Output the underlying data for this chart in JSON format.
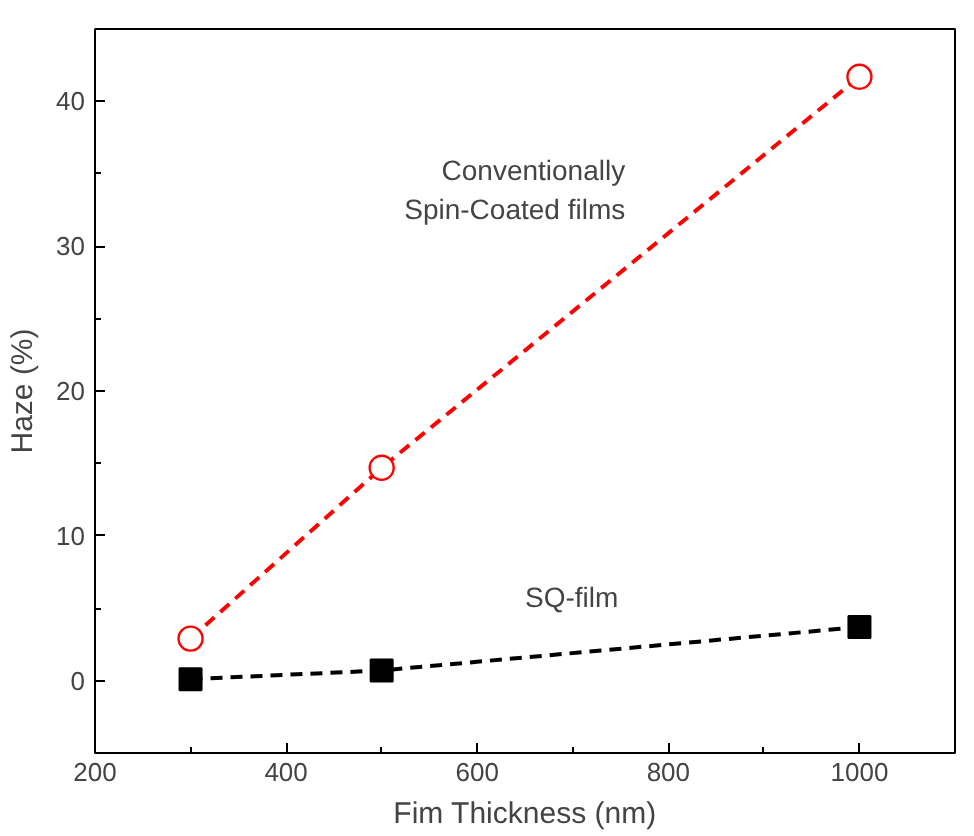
{
  "chart_data": {
    "type": "line",
    "xlabel": "Fim Thickness (nm)",
    "ylabel": "Haze (%)",
    "x": [
      300,
      500,
      1000
    ],
    "series": [
      {
        "name": "Conventionally\nSpin-Coated films",
        "color": "#ff0000",
        "values": [
          2.9,
          14.7,
          41.7
        ],
        "marker": "circle"
      },
      {
        "name": "SQ-film",
        "color": "#000000",
        "values": [
          0.1,
          0.7,
          3.7
        ],
        "marker": "square"
      }
    ],
    "line_style": "dashed",
    "xlim": [
      200,
      1100
    ],
    "ylim": [
      -5,
      45
    ],
    "xticks": [
      200,
      400,
      600,
      800,
      1000
    ],
    "yticks": [
      0,
      10,
      20,
      30,
      40
    ],
    "grid": false
  }
}
